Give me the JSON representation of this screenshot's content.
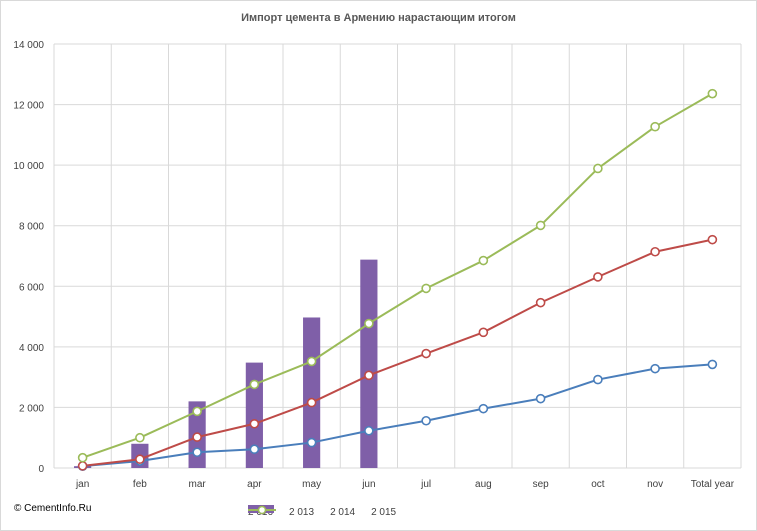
{
  "chart_data": {
    "type": "bar+line",
    "title": "Импорт цемента в Армению нарастающим  итогом",
    "categories": [
      "jan",
      "feb",
      "mar",
      "apr",
      "may",
      "jun",
      "jul",
      "aug",
      "sep",
      "oct",
      "nov",
      "Total year"
    ],
    "ylim": [
      0,
      14000
    ],
    "yticks": [
      0,
      2000,
      4000,
      6000,
      8000,
      10000,
      12000,
      14000
    ],
    "ytick_labels": [
      "0",
      "2 000",
      "4 000",
      "6 000",
      "8 000",
      "10 000",
      "12 000",
      "14 000"
    ],
    "grid": true,
    "legend_position": "bottom",
    "series": [
      {
        "name": "2 016",
        "kind": "bar",
        "color": "#7f5fa8",
        "values": [
          60,
          800,
          2200,
          3480,
          4970,
          6880,
          null,
          null,
          null,
          null,
          null,
          null
        ]
      },
      {
        "name": "2 013",
        "kind": "line",
        "color": "#4a7ebb",
        "values": [
          60,
          230,
          520,
          620,
          840,
          1230,
          1560,
          1960,
          2290,
          2920,
          3280,
          3420
        ]
      },
      {
        "name": "2 014",
        "kind": "line",
        "color": "#be4b48",
        "values": [
          70,
          290,
          1020,
          1460,
          2160,
          3060,
          3780,
          4480,
          5460,
          6310,
          7140,
          7540
        ]
      },
      {
        "name": "2 015",
        "kind": "line",
        "color": "#9bbb59",
        "values": [
          340,
          1000,
          1870,
          2760,
          3520,
          4770,
          5930,
          6850,
          8010,
          9890,
          11270,
          12360
        ]
      }
    ]
  },
  "footer": {
    "copyright": "© CementInfo.Ru"
  }
}
